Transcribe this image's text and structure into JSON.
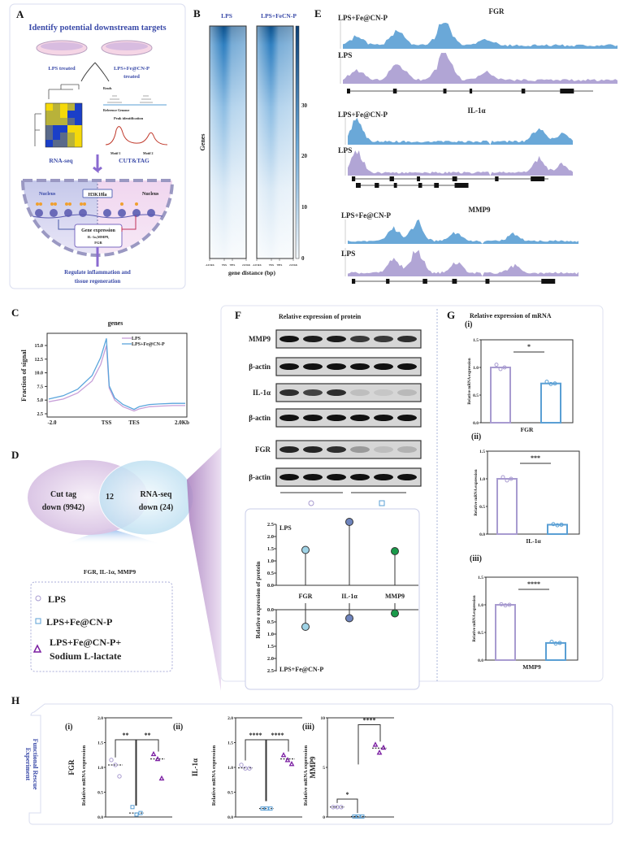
{
  "colors": {
    "lps": "#a89bd0",
    "fe": "#5a9fd4",
    "lactate": "#7b1fa2",
    "title_blue": "#3a4aa8",
    "heat_dark": "#0b4f8a"
  },
  "panel_a": {
    "label": "A",
    "title": "Identify potential downstream targets",
    "group1": "LPS treated",
    "group2_line1": "LPS+Fe@CN-P",
    "group2_line2": "treated",
    "reads": "Reads",
    "reference_genome": "Reference Genome",
    "peak_identification": "Peak identification",
    "motif1": "Motif 1",
    "motif2": "Motif 2",
    "rnaseq": "RNA-seq",
    "cuttag": "CUT&TAG",
    "nucleus_left": "Nucleus",
    "nucleus_right": "Nucleus",
    "mark": "H3K18la",
    "gene_expr_title": "Gene expression",
    "gene_expr_line2": "IL-1α,MMP9,",
    "gene_expr_line3": "FGR",
    "outcome_line1": "Regulate inflammation and",
    "outcome_line2": "tissue regeneration"
  },
  "panel_b": {
    "label": "B",
    "col1": "LPS",
    "col2": "LPS+FeCN-P",
    "ylabel": "Genes",
    "xlabel": "gene distance (bp)",
    "xticks": [
      "-2.0 Kb",
      "TSS",
      "TES",
      "2.0 Kb"
    ],
    "colorbar_ticks": [
      "0",
      "10",
      "20",
      "30"
    ]
  },
  "panel_e": {
    "label": "E",
    "genes": [
      {
        "name": "FGR",
        "track1": "LPS+Fe@CN-P",
        "track2": "LPS"
      },
      {
        "name": "IL-1α",
        "track1": "LPS+Fe@CN-P",
        "track2": "LPS"
      },
      {
        "name": "MMP9",
        "track1": "LPS+Fe@CN-P",
        "track2": "LPS"
      }
    ]
  },
  "panel_d": {
    "label": "D",
    "left_line1": "Cut tag",
    "left_line2": "down (9942)",
    "overlap": "12",
    "right_line1": "RNA-seq",
    "right_line2": "down (24)",
    "genes": "FGR, IL-1α,   MMP9",
    "legend": [
      "LPS",
      "LPS+Fe@CN-P",
      "LPS+Fe@CN-P+",
      "Sodium L-lactate"
    ]
  },
  "panel_f": {
    "label": "F",
    "title": "Relative expression of protein",
    "blots": [
      {
        "label": "MMP9",
        "bands": [
          1,
          0.95,
          0.95,
          0.8,
          0.8,
          0.85
        ]
      },
      {
        "label": "β-actin",
        "bands": [
          1,
          1,
          1,
          1,
          1,
          1
        ]
      },
      {
        "label": "IL-1α",
        "bands": [
          0.85,
          0.75,
          0.85,
          0.12,
          0.08,
          0.15
        ]
      },
      {
        "label": "β-actin",
        "bands": [
          1,
          1,
          1,
          1,
          1,
          1
        ]
      },
      {
        "label": "FGR",
        "bands": [
          0.9,
          0.9,
          0.85,
          0.3,
          0.12,
          0.18
        ]
      },
      {
        "label": "β-actin",
        "bands": [
          1,
          1,
          1,
          1,
          1,
          1
        ]
      }
    ]
  },
  "panel_g": {
    "label": "G",
    "title": "Relative expression of mRNA"
  },
  "panel_h": {
    "label": "H",
    "tab_line1": "Functional Rescue",
    "tab_line2": "Experiment"
  },
  "chart_data": [
    {
      "id": "C",
      "type": "line",
      "title": "genes",
      "ylabel": "Fraction of signal",
      "xlabel": "",
      "xticks": [
        "-2.0",
        "TSS",
        "TES",
        "2.0Kb"
      ],
      "yticks": [
        2.5,
        5.0,
        7.5,
        10.0,
        12.5,
        15.0
      ],
      "ylim": [
        2.5,
        16.5
      ],
      "x_note": "TSS=0, TES=1, 2.0Kb=3",
      "x": [
        -2,
        -1.5,
        -1,
        -0.5,
        -0.2,
        0,
        0.1,
        0.3,
        0.6,
        1.0,
        1.2,
        1.6,
        2.0,
        2.5,
        3.0
      ],
      "series": [
        {
          "name": "LPS",
          "color": "#c79fd8",
          "values": [
            4.7,
            5.2,
            6.3,
            8.5,
            11.5,
            15.0,
            7.2,
            5.0,
            3.8,
            3.0,
            3.4,
            3.8,
            3.9,
            4.0,
            4.0
          ]
        },
        {
          "name": "LPS+Fe@CN-P",
          "color": "#5aa5dc",
          "values": [
            5.2,
            5.8,
            7.0,
            9.5,
            12.8,
            16.3,
            7.6,
            5.4,
            4.2,
            3.3,
            3.8,
            4.2,
            4.3,
            4.4,
            4.4
          ]
        }
      ],
      "legend": "top-right"
    },
    {
      "id": "F_lollipop",
      "type": "scatter",
      "ylabel": "Relative expression of protein",
      "categories": [
        "FGR",
        "IL-1α",
        "MMP9"
      ],
      "category_colors": [
        "#9fd3e6",
        "#6e84bd",
        "#1a9a4a"
      ],
      "yticks": [
        "0.0",
        "0.5",
        "1.0",
        "1.5",
        "2.0",
        "2.5"
      ],
      "ylim": [
        0,
        2.5
      ],
      "series": [
        {
          "name": "LPS",
          "values": [
            1.45,
            2.6,
            1.4
          ]
        },
        {
          "name": "LPS+Fe@CN-P",
          "values": [
            0.7,
            0.35,
            0.15
          ]
        }
      ]
    },
    {
      "id": "G_i",
      "panel": "(i)",
      "type": "bar",
      "xlabel": "FGR",
      "ylabel": "Relative mRNA expression",
      "ylim": [
        0,
        1.5
      ],
      "yticks": [
        "0.0",
        "0.5",
        "1.0",
        "1.5"
      ],
      "significance": "*",
      "series": [
        {
          "name": "LPS",
          "value": 1.0,
          "points": [
            1.05,
            0.97,
            1.0
          ]
        },
        {
          "name": "LPS+Fe@CN-P",
          "value": 0.71,
          "points": [
            0.74,
            0.7,
            0.71
          ]
        }
      ]
    },
    {
      "id": "G_ii",
      "panel": "(ii)",
      "type": "bar",
      "xlabel": "IL-1α",
      "ylabel": "Relative mRNA expression",
      "ylim": [
        0,
        1.5
      ],
      "yticks": [
        "0.0",
        "0.5",
        "1.0",
        "1.5"
      ],
      "significance": "***",
      "series": [
        {
          "name": "LPS",
          "value": 1.0,
          "points": [
            1.03,
            0.97,
            1.0
          ]
        },
        {
          "name": "LPS+Fe@CN-P",
          "value": 0.17,
          "points": [
            0.18,
            0.16,
            0.17
          ]
        }
      ]
    },
    {
      "id": "G_iii",
      "panel": "(iii)",
      "type": "bar",
      "xlabel": "MMP9",
      "ylabel": "Relative mRNA expression",
      "ylim": [
        0,
        1.5
      ],
      "yticks": [
        "0.0",
        "0.5",
        "1.0",
        "1.5"
      ],
      "significance": "****",
      "series": [
        {
          "name": "LPS",
          "value": 1.0,
          "points": [
            1.01,
            0.99,
            1.0
          ]
        },
        {
          "name": "LPS+Fe@CN-P",
          "value": 0.31,
          "points": [
            0.33,
            0.3,
            0.31
          ]
        }
      ]
    },
    {
      "id": "H_i",
      "panel": "(i)",
      "type": "scatter",
      "gene": "FGR",
      "ylabel": "Relative mRNA expression",
      "ylim": [
        0,
        2.0
      ],
      "yticks": [
        "0.0",
        "0.5",
        "1.0",
        "1.5",
        "2.0"
      ],
      "groups": [
        {
          "name": "LPS",
          "mean": 1.05,
          "points": [
            1.15,
            1.05,
            0.82
          ]
        },
        {
          "name": "LPS+Fe@CN-P",
          "mean": 0.08,
          "points": [
            0.2,
            0.05,
            0.08
          ]
        },
        {
          "name": "LPS+Fe@CN-P+Sodium L-lactate",
          "mean": 1.17,
          "points": [
            1.27,
            1.17,
            0.78
          ]
        }
      ],
      "comparisons": [
        {
          "groups": [
            0,
            1
          ],
          "label": "**"
        },
        {
          "groups": [
            1,
            2
          ],
          "label": "**"
        }
      ]
    },
    {
      "id": "H_ii",
      "panel": "(ii)",
      "type": "scatter",
      "gene": "IL-1α",
      "ylabel": "Relative mRNA expression",
      "ylim": [
        0,
        2.0
      ],
      "yticks": [
        "0.0",
        "0.5",
        "1.0",
        "1.5",
        "2.0"
      ],
      "groups": [
        {
          "name": "LPS",
          "mean": 0.99,
          "points": [
            1.05,
            0.98,
            0.98
          ]
        },
        {
          "name": "LPS+Fe@CN-P",
          "mean": 0.17,
          "points": [
            0.17,
            0.17,
            0.17
          ]
        },
        {
          "name": "LPS+Fe@CN-P+Sodium L-lactate",
          "mean": 1.17,
          "points": [
            1.25,
            1.15,
            1.07
          ]
        }
      ],
      "comparisons": [
        {
          "groups": [
            0,
            1
          ],
          "label": "****"
        },
        {
          "groups": [
            1,
            2
          ],
          "label": "****"
        }
      ]
    },
    {
      "id": "H_iii",
      "panel": "(iii)",
      "type": "scatter",
      "gene": "MMP9",
      "ylabel": "Relative mRNA expression",
      "ylim": [
        0,
        10
      ],
      "yticks": [
        "0",
        "5",
        "10"
      ],
      "groups": [
        {
          "name": "LPS",
          "mean": 1.0,
          "points": [
            1.0,
            1.0,
            1.0
          ]
        },
        {
          "name": "LPS+Fe@CN-P",
          "mean": 0.05,
          "points": [
            0.05,
            0.05,
            0.05
          ]
        },
        {
          "name": "LPS+Fe@CN-P+Sodium L-lactate",
          "mean": 6.95,
          "points": [
            7.3,
            6.5,
            7.0
          ]
        }
      ],
      "comparisons": [
        {
          "groups": [
            0,
            1
          ],
          "label": "*"
        },
        {
          "groups": [
            1,
            2
          ],
          "label": "****"
        }
      ]
    }
  ]
}
